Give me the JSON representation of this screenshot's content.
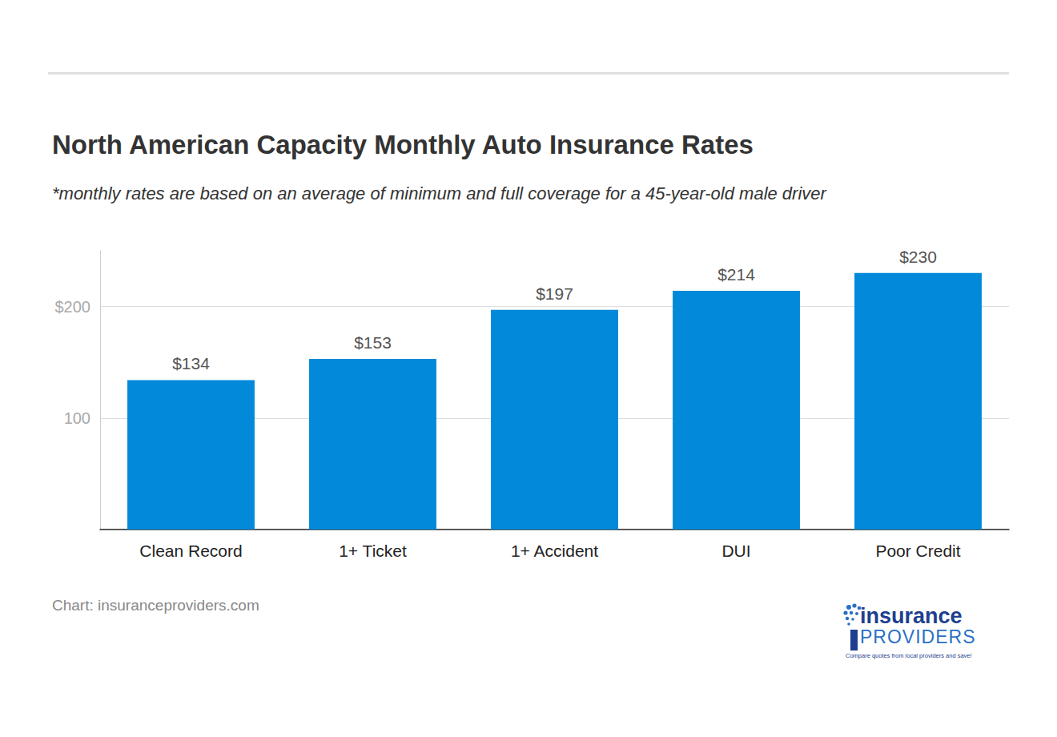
{
  "chart_data": {
    "type": "bar",
    "title": "North American Capacity Monthly Auto Insurance Rates",
    "subtitle": "*monthly rates are based on an average of minimum and full coverage for a 45-year-old male driver",
    "categories": [
      "Clean Record",
      "1+ Ticket",
      "1+ Accident",
      "DUI",
      "Poor Credit"
    ],
    "values": [
      134,
      153,
      197,
      214,
      230
    ],
    "value_labels": [
      "$134",
      "$153",
      "$197",
      "$214",
      "$230"
    ],
    "color": "#0289d9",
    "ylim": [
      0,
      250
    ],
    "yticks": [
      100,
      {
        "value": 200,
        "label": "$200"
      }
    ],
    "grid": true,
    "data_labels": true,
    "source": "Chart: insuranceproviders.com"
  },
  "logo": {
    "line1": "insurance",
    "line2": "PROVIDERS",
    "tagline": "Compare quotes from local providers and save!"
  }
}
